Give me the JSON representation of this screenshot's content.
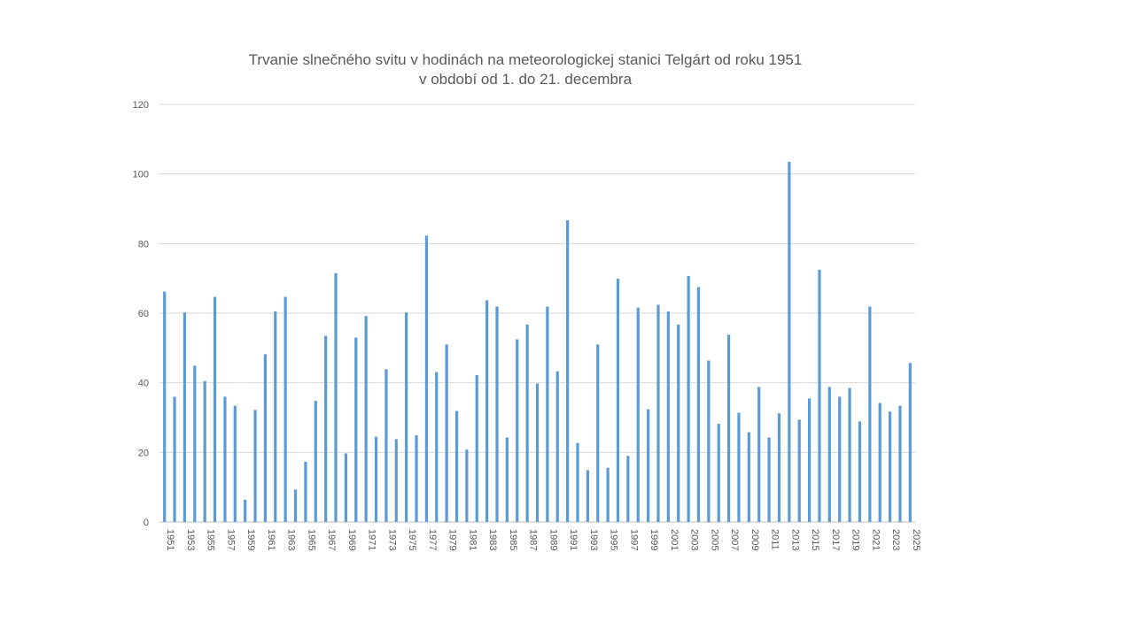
{
  "chart_data": {
    "type": "bar",
    "title": "Trvanie slnečného svitu v hodinách na meteorologickej stanici Telgárt od roku 1951",
    "subtitle": "v období od 1. do 21. decembra",
    "xlabel": "",
    "ylabel": "",
    "ylim": [
      0,
      120
    ],
    "yticks": [
      "0",
      "20",
      "40",
      "60",
      "80",
      "100",
      "120"
    ],
    "grid": true,
    "bar_color": "#5b9bd5",
    "categories": [
      "1951",
      "1952",
      "1953",
      "1954",
      "1955",
      "1956",
      "1957",
      "1958",
      "1959",
      "1960",
      "1961",
      "1962",
      "1963",
      "1964",
      "1965",
      "1966",
      "1967",
      "1968",
      "1969",
      "1970",
      "1971",
      "1972",
      "1973",
      "1974",
      "1975",
      "1976",
      "1977",
      "1978",
      "1979",
      "1980",
      "1981",
      "1982",
      "1983",
      "1984",
      "1985",
      "1986",
      "1987",
      "1988",
      "1989",
      "1990",
      "1991",
      "1992",
      "1993",
      "1994",
      "1995",
      "1996",
      "1997",
      "1998",
      "1999",
      "2000",
      "2001",
      "2002",
      "2003",
      "2004",
      "2005",
      "2006",
      "2007",
      "2008",
      "2009",
      "2010",
      "2011",
      "2012",
      "2013",
      "2014",
      "2015",
      "2016",
      "2017",
      "2018",
      "2019",
      "2020",
      "2021",
      "2022",
      "2023",
      "2024",
      "2025"
    ],
    "values": [
      66.2,
      36.0,
      60.2,
      44.9,
      40.5,
      64.7,
      36.0,
      33.4,
      6.4,
      32.2,
      48.2,
      60.5,
      64.7,
      9.3,
      17.3,
      34.8,
      53.5,
      71.5,
      19.7,
      53.0,
      59.2,
      24.5,
      43.9,
      23.8,
      60.2,
      24.9,
      82.3,
      43.1,
      51.0,
      31.9,
      20.8,
      42.2,
      63.7,
      61.9,
      24.3,
      52.5,
      56.7,
      39.8,
      61.9,
      43.3,
      86.7,
      22.7,
      14.9,
      51.0,
      15.6,
      69.9,
      19.0,
      61.6,
      32.4,
      62.4,
      60.5,
      56.7,
      70.7,
      67.5,
      46.4,
      28.2,
      53.8,
      31.4,
      25.8,
      38.8,
      24.3,
      31.2,
      103.5,
      29.4,
      35.5,
      72.5,
      38.8,
      36.0,
      38.5,
      28.9,
      61.9,
      34.2,
      31.7,
      33.4,
      45.7
    ]
  }
}
